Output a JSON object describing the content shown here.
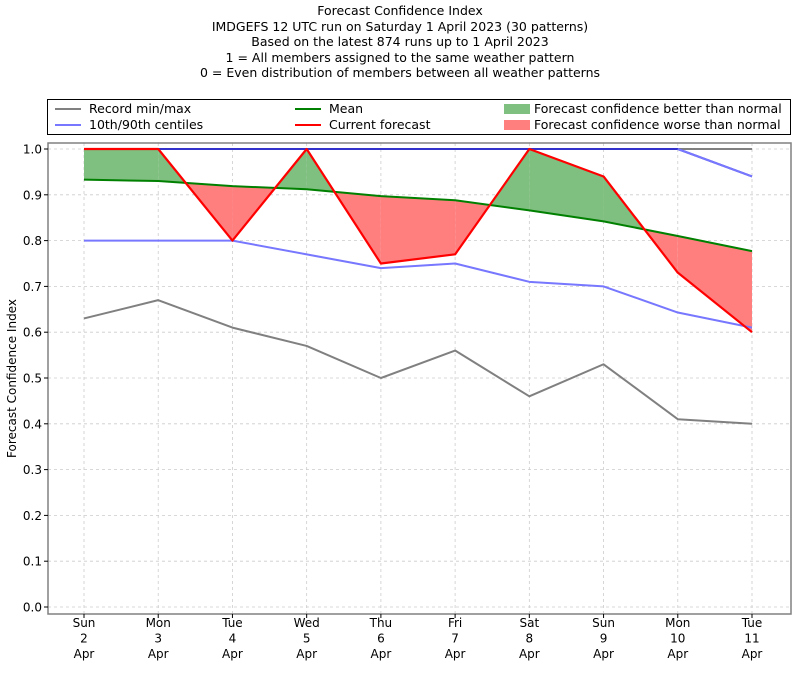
{
  "chart_data": {
    "type": "line",
    "title_lines": [
      "Forecast Confidence Index",
      "IMDGEFS 12 UTC run on Saturday 1 April 2023 (30 patterns)",
      "Based on the latest 874 runs up to 1 April 2023",
      "1 = All members assigned to the same weather pattern",
      "0 = Even distribution of members between all weather patterns"
    ],
    "xlabel": "",
    "ylabel": "Forecast Confidence Index",
    "ylim": [
      0.0,
      1.0
    ],
    "yticks": [
      "0.0",
      "0.1",
      "0.2",
      "0.3",
      "0.4",
      "0.5",
      "0.6",
      "0.7",
      "0.8",
      "0.9",
      "1.0"
    ],
    "grid": true,
    "legend_position": "top",
    "categories": [
      {
        "day": "Sun",
        "date": "2",
        "month": "Apr"
      },
      {
        "day": "Mon",
        "date": "3",
        "month": "Apr"
      },
      {
        "day": "Tue",
        "date": "4",
        "month": "Apr"
      },
      {
        "day": "Wed",
        "date": "5",
        "month": "Apr"
      },
      {
        "day": "Thu",
        "date": "6",
        "month": "Apr"
      },
      {
        "day": "Fri",
        "date": "7",
        "month": "Apr"
      },
      {
        "day": "Sat",
        "date": "8",
        "month": "Apr"
      },
      {
        "day": "Sun",
        "date": "9",
        "month": "Apr"
      },
      {
        "day": "Mon",
        "date": "10",
        "month": "Apr"
      },
      {
        "day": "Tue",
        "date": "11",
        "month": "Apr"
      }
    ],
    "series": [
      {
        "name": "Record max",
        "color": "#808080",
        "values": [
          1.0,
          1.0,
          1.0,
          1.0,
          1.0,
          1.0,
          1.0,
          1.0,
          1.0,
          1.0
        ]
      },
      {
        "name": "Record min",
        "color": "#808080",
        "values": [
          0.63,
          0.67,
          0.61,
          0.57,
          0.5,
          0.56,
          0.46,
          0.53,
          0.41,
          0.4
        ]
      },
      {
        "name": "90th centile",
        "color": "#7777ff",
        "values": [
          1.0,
          1.0,
          1.0,
          1.0,
          1.0,
          1.0,
          1.0,
          1.0,
          1.0,
          0.94
        ]
      },
      {
        "name": "10th centile",
        "color": "#7777ff",
        "values": [
          0.8,
          0.8,
          0.8,
          0.77,
          0.74,
          0.75,
          0.71,
          0.7,
          0.643,
          0.61
        ]
      },
      {
        "name": "Mean",
        "color": "#008000",
        "values": [
          0.933,
          0.93,
          0.919,
          0.912,
          0.897,
          0.888,
          0.866,
          0.842,
          0.81,
          0.777
        ]
      },
      {
        "name": "Current forecast",
        "color": "#ff0000",
        "values": [
          1.0,
          1.0,
          0.8,
          1.0,
          0.75,
          0.77,
          1.0,
          0.94,
          0.73,
          0.6
        ]
      }
    ],
    "fill_colors": {
      "better": "#7fbf7f",
      "worse": "#ff7f7f"
    }
  },
  "legend": [
    {
      "label": "Record min/max",
      "kind": "line",
      "color": "#808080"
    },
    {
      "label": "10th/90th centiles",
      "kind": "line",
      "color": "#7777ff"
    },
    {
      "label": "Mean",
      "kind": "line",
      "color": "#008000"
    },
    {
      "label": "Current forecast",
      "kind": "line",
      "color": "#ff0000"
    },
    {
      "label": "Forecast confidence better than normal",
      "kind": "patch",
      "color": "#7fbf7f"
    },
    {
      "label": "Forecast confidence worse than normal",
      "kind": "patch",
      "color": "#ff7f7f"
    }
  ]
}
